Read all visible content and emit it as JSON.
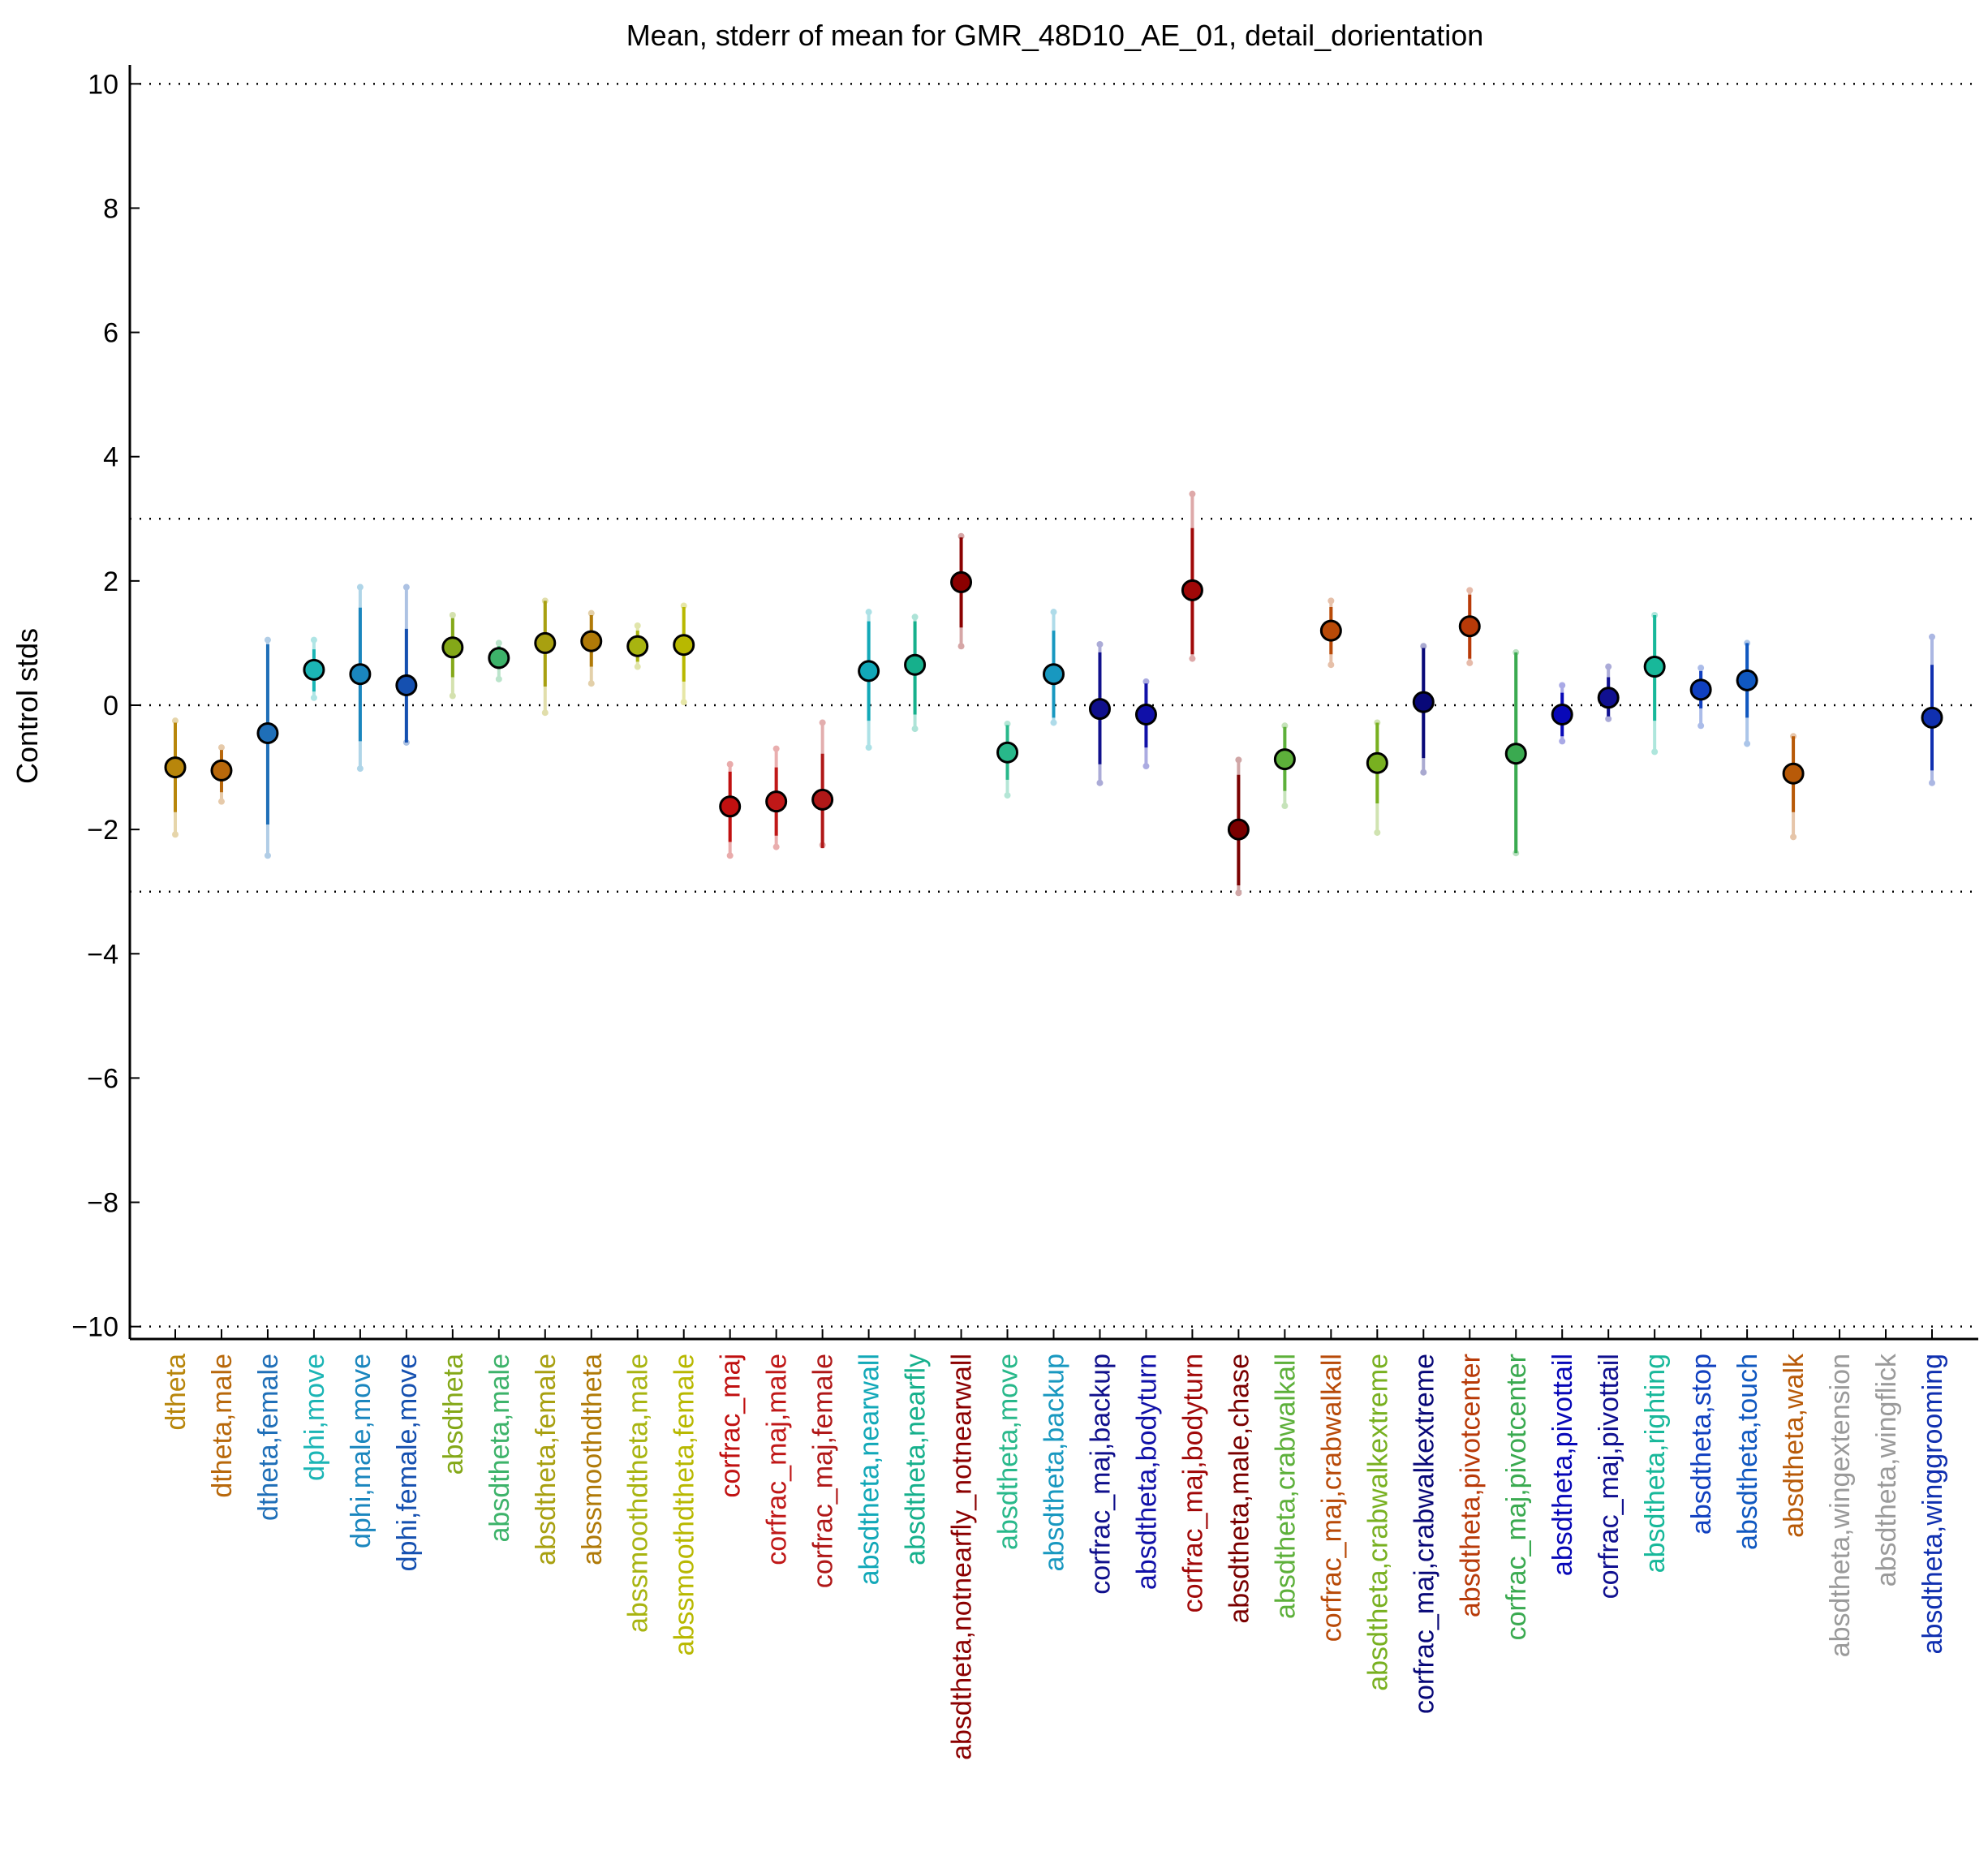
{
  "chart_data": {
    "type": "scatter",
    "title": "Mean, stderr of mean for GMR_48D10_AE_01, detail_dorientation",
    "xlabel": "",
    "ylabel": "Control stds",
    "ylim": [
      -10.2,
      10.2
    ],
    "yticks": [
      10,
      8,
      6,
      4,
      2,
      0,
      -2,
      -4,
      -6,
      -8,
      -10
    ],
    "ytick_labels": [
      "10",
      "8",
      "6",
      "4",
      "2",
      "0",
      "−2",
      "−4",
      "−6",
      "−8",
      "−10"
    ],
    "reference_lines": [
      10,
      3,
      0,
      -3,
      -10
    ],
    "grid": false,
    "legend": "none",
    "categories": [
      "dtheta",
      "dtheta,male",
      "dtheta,female",
      "dphi,move",
      "dphi,male,move",
      "dphi,female,move",
      "absdtheta",
      "absdtheta,male",
      "absdtheta,female",
      "abssmoothdtheta",
      "abssmoothdtheta,male",
      "abssmoothdtheta,female",
      "corfrac_maj",
      "corfrac_maj,male",
      "corfrac_maj,female",
      "absdtheta,nearwall",
      "absdtheta,nearfly",
      "absdtheta,notnearfly_notnearwall",
      "absdtheta,move",
      "absdtheta,backup",
      "corfrac_maj,backup",
      "absdtheta,bodyturn",
      "corfrac_maj,bodyturn",
      "absdtheta,male,chase",
      "absdtheta,crabwalkall",
      "corfrac_maj,crabwalkall",
      "absdtheta,crabwalkextreme",
      "corfrac_maj,crabwalkextreme",
      "absdtheta,pivotcenter",
      "corfrac_maj,pivotcenter",
      "absdtheta,pivottail",
      "corfrac_maj,pivottail",
      "absdtheta,righting",
      "absdtheta,stop",
      "absdtheta,touch",
      "absdtheta,walk",
      "absdtheta,wingextension",
      "absdtheta,wingflick",
      "absdtheta,winggrooming"
    ],
    "colors": [
      "#B8860B",
      "#B8680B",
      "#1F6FB8",
      "#1BB5B5",
      "#1A86BE",
      "#1550B0",
      "#84A818",
      "#3DB36A",
      "#A8A010",
      "#B07A08",
      "#A8B410",
      "#B8B800",
      "#C01010",
      "#C01818",
      "#B01818",
      "#12A8B8",
      "#16B08C",
      "#8B0000",
      "#28B88A",
      "#1898C0",
      "#10108C",
      "#1010A8",
      "#A00808",
      "#7A0000",
      "#5DB03A",
      "#B84A08",
      "#78B020",
      "#080878",
      "#B83A08",
      "#3AAA50",
      "#0808B8",
      "#101090",
      "#18B89A",
      "#1040C0",
      "#1058C0",
      "#B85A08",
      "#9A9A9A",
      "#9A9A9A",
      "#1030B0"
    ],
    "series": [
      {
        "mean": [
          -1.0,
          -1.05,
          -0.45,
          0.57,
          0.5,
          0.32,
          0.93,
          0.76,
          1.0,
          1.03,
          0.95,
          0.97,
          -1.63,
          -1.55,
          -1.52,
          0.55,
          0.65,
          1.98,
          -0.76,
          0.5,
          -0.06,
          -0.15,
          1.85,
          -2.0,
          -0.87,
          1.2,
          -0.93,
          0.05,
          1.27,
          -0.78,
          -0.15,
          0.12,
          0.62,
          0.25,
          0.4,
          -1.1,
          null,
          null,
          -0.2
        ],
        "stderr_low": [
          -1.72,
          -1.4,
          -1.92,
          0.22,
          -0.58,
          -0.6,
          0.45,
          0.58,
          0.3,
          0.62,
          0.7,
          0.38,
          -2.2,
          -2.1,
          -2.3,
          -0.25,
          -0.15,
          1.25,
          -1.2,
          -0.2,
          -0.95,
          -0.68,
          0.82,
          -2.9,
          -1.38,
          0.82,
          -1.58,
          -0.85,
          0.75,
          -2.38,
          -0.5,
          -0.18,
          -0.25,
          -0.05,
          -0.2,
          -1.72,
          null,
          null,
          -1.05
        ],
        "stderr_high": [
          -0.28,
          -0.72,
          0.98,
          0.9,
          1.57,
          1.23,
          1.4,
          0.95,
          1.68,
          1.45,
          1.2,
          1.58,
          -1.07,
          -1.0,
          -0.78,
          1.35,
          1.35,
          2.7,
          -0.32,
          1.2,
          0.85,
          0.35,
          2.85,
          -1.12,
          -0.35,
          1.58,
          -0.28,
          0.92,
          1.78,
          0.85,
          0.2,
          0.45,
          1.45,
          0.55,
          1.0,
          -0.5,
          null,
          null,
          0.65
        ],
        "range_low": [
          -2.08,
          -1.55,
          -2.42,
          0.12,
          -1.02,
          -0.6,
          0.15,
          0.42,
          -0.12,
          0.35,
          0.62,
          0.05,
          -2.42,
          -2.28,
          -2.25,
          -0.68,
          -0.38,
          0.95,
          -1.45,
          -0.28,
          -1.25,
          -0.98,
          0.75,
          -3.02,
          -1.62,
          0.65,
          -2.05,
          -1.08,
          0.68,
          -2.38,
          -0.58,
          -0.22,
          -0.75,
          -0.33,
          -0.62,
          -2.12,
          null,
          null,
          -1.25
        ],
        "range_high": [
          -0.25,
          -0.68,
          1.05,
          1.05,
          1.9,
          1.9,
          1.45,
          1.0,
          1.68,
          1.48,
          1.28,
          1.6,
          -0.95,
          -0.7,
          -0.28,
          1.5,
          1.42,
          2.72,
          -0.3,
          1.5,
          0.98,
          0.38,
          3.4,
          -0.88,
          -0.33,
          1.68,
          -0.28,
          0.95,
          1.85,
          0.85,
          0.32,
          0.62,
          1.45,
          0.6,
          1.0,
          -0.5,
          null,
          null,
          1.1
        ]
      }
    ]
  }
}
